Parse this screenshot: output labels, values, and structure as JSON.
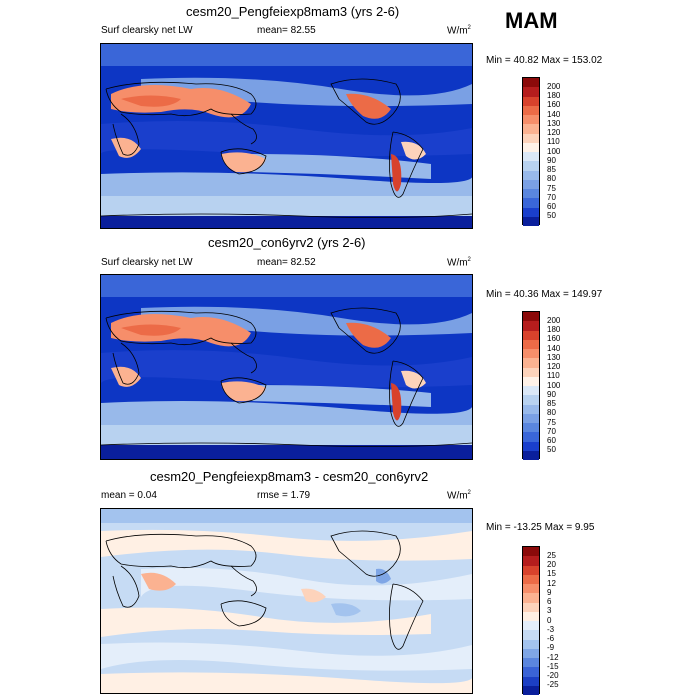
{
  "season": "MAM",
  "panels": [
    {
      "title": "cesm20_Pengfeiexp8mam3 (yrs 2-6)",
      "left_label": "Surf clearsky net LW",
      "center_label": "mean=  82.55",
      "units": "W/m",
      "units_sup": "2",
      "minmax": "Min =  40.82 Max = 153.02",
      "colorbar": {
        "labels": [
          "200",
          "180",
          "160",
          "140",
          "130",
          "120",
          "110",
          "100",
          "90",
          "85",
          "80",
          "75",
          "70",
          "60",
          "50"
        ],
        "colors": [
          "#8b0a0a",
          "#b51d1d",
          "#d8422c",
          "#ec6b47",
          "#f68e6a",
          "#fbb291",
          "#fdd3bb",
          "#fff2e8",
          "#dbe8f7",
          "#b8d2f0",
          "#98b9ea",
          "#7aa0e4",
          "#5a86de",
          "#3a66d8",
          "#1a3fcc",
          "#0a1f9c"
        ]
      }
    },
    {
      "title": "cesm20_con6yrv2 (yrs 2-6)",
      "left_label": "Surf clearsky net LW",
      "center_label": "mean=  82.52",
      "units": "W/m",
      "units_sup": "2",
      "minmax": "Min =  40.36 Max = 149.97",
      "colorbar": {
        "labels": [
          "200",
          "180",
          "160",
          "140",
          "130",
          "120",
          "110",
          "100",
          "90",
          "85",
          "80",
          "75",
          "70",
          "60",
          "50"
        ],
        "colors": [
          "#8b0a0a",
          "#b51d1d",
          "#d8422c",
          "#ec6b47",
          "#f68e6a",
          "#fbb291",
          "#fdd3bb",
          "#fff2e8",
          "#dbe8f7",
          "#b8d2f0",
          "#98b9ea",
          "#7aa0e4",
          "#5a86de",
          "#3a66d8",
          "#1a3fcc",
          "#0a1f9c"
        ]
      }
    },
    {
      "title": "cesm20_Pengfeiexp8mam3 - cesm20_con6yrv2",
      "left_label": "mean =   0.04",
      "center_label": "rmse =   1.79",
      "units": "W/m",
      "units_sup": "2",
      "minmax": "Min = -13.25 Max =   9.95",
      "colorbar": {
        "labels": [
          "25",
          "20",
          "15",
          "12",
          "9",
          "6",
          "3",
          "0",
          "-3",
          "-6",
          "-9",
          "-12",
          "-15",
          "-20",
          "-25"
        ],
        "colors": [
          "#8b0a0a",
          "#b51d1d",
          "#d8422c",
          "#ec6b47",
          "#f68e6a",
          "#fbb291",
          "#fdd3bb",
          "#fff0e4",
          "#e4eefa",
          "#c6dbf4",
          "#a3c3ee",
          "#7fa6e6",
          "#5b86de",
          "#3a63d6",
          "#1c3fc4",
          "#0a1f9c"
        ]
      }
    }
  ]
}
